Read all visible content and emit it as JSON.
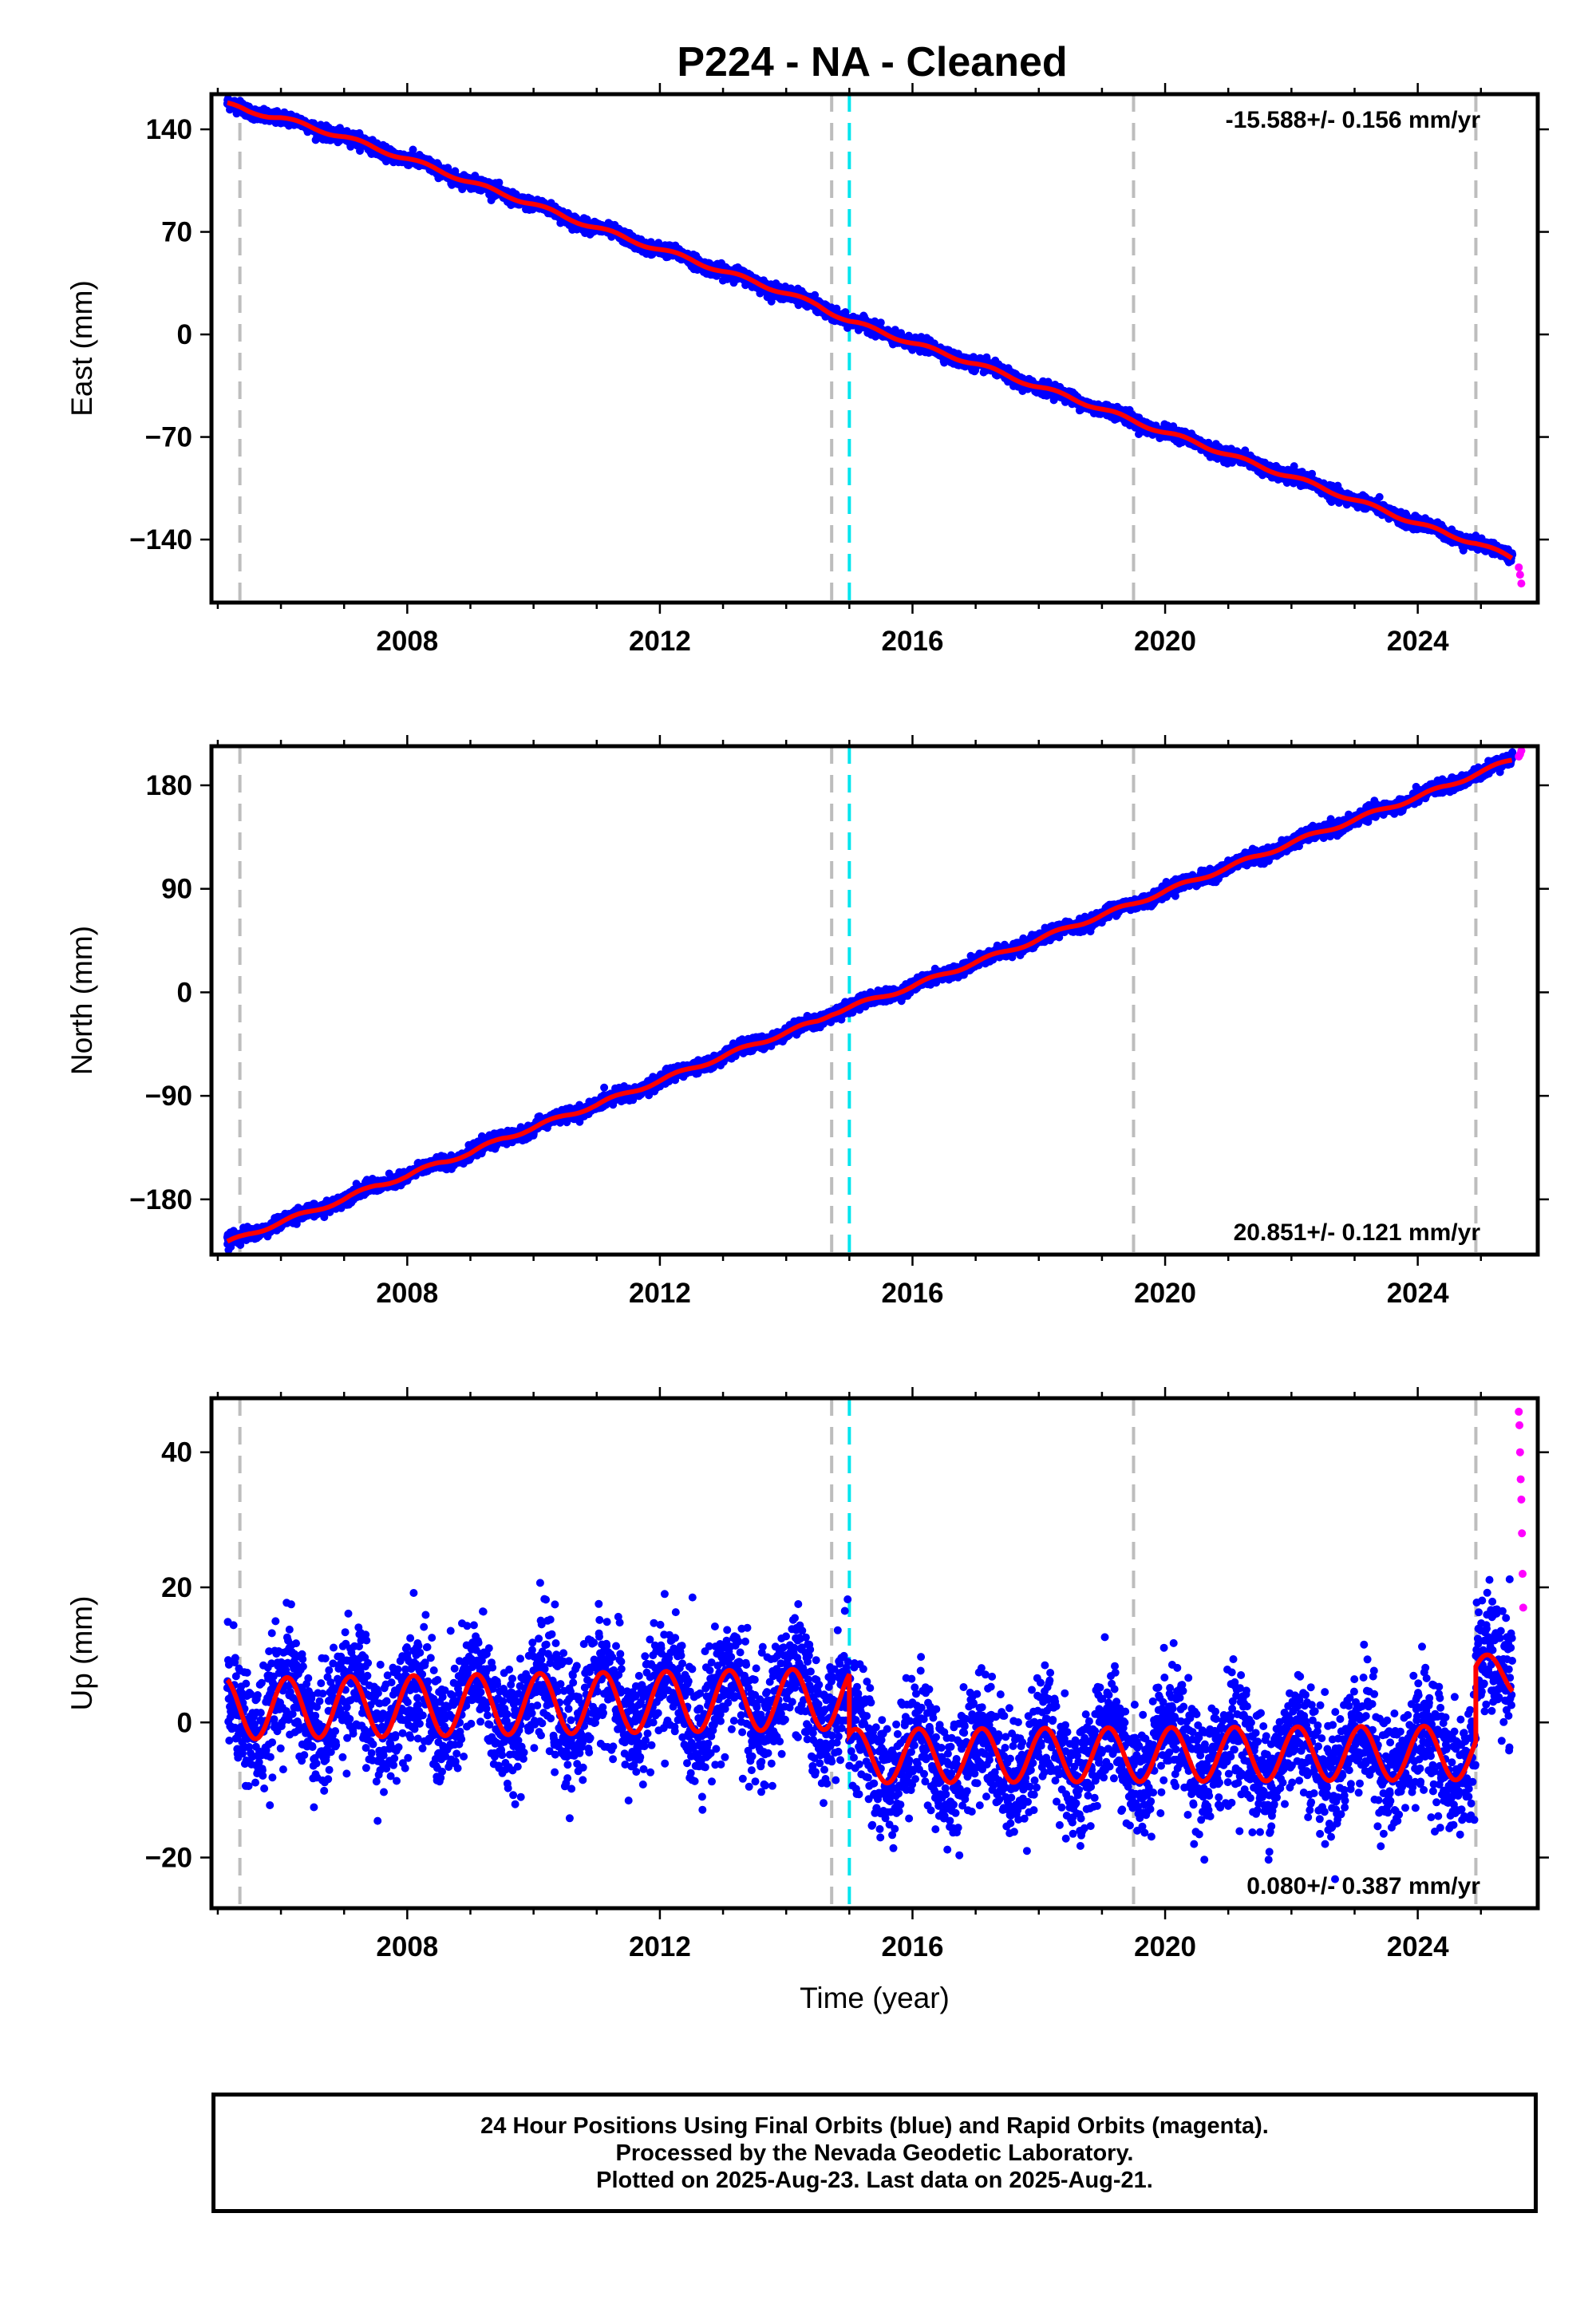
{
  "title": "P224  - NA - Cleaned",
  "colors": {
    "final_orbits": "#0000ff",
    "rapid_orbits": "#ff00ff",
    "model_fit": "#ff0000",
    "equipment_change_line": "#bdbdbd",
    "earthquake_line": "#00e5ee"
  },
  "chart_data": [
    {
      "type": "scatter",
      "panel": "east",
      "ylabel": "East (mm)",
      "xlabel": "",
      "xlim": [
        2004.9,
        2025.9
      ],
      "ylim": [
        -183,
        164
      ],
      "yticks": [
        140,
        70,
        0,
        -70,
        -140
      ],
      "xticks": [
        2008,
        2012,
        2016,
        2020,
        2024
      ],
      "rate_label": "-15.588+/- 0.156 mm/yr",
      "rate_position": "top-right",
      "grid": false,
      "vertical_lines": {
        "gray_dashed": [
          2005.35,
          2014.72,
          2019.5,
          2024.92
        ],
        "cyan_dashed": [
          2015.0
        ]
      },
      "series": [
        {
          "color": "blue",
          "x": [
            2005.15,
            2005.5,
            2006,
            2006.5,
            2007,
            2007.5,
            2008,
            2008.5,
            2009,
            2009.5,
            2010,
            2010.5,
            2011,
            2011.5,
            2012,
            2012.5,
            2013,
            2013.5,
            2014,
            2014.5,
            2014.72,
            2015,
            2015.5,
            2016,
            2016.5,
            2017,
            2017.5,
            2018,
            2018.5,
            2019,
            2019.5,
            2020,
            2020.5,
            2021,
            2021.5,
            2022,
            2022.5,
            2023,
            2023.5,
            2024,
            2024.5,
            2024.92,
            2025.5
          ],
          "y": [
            157,
            152,
            148,
            141,
            135,
            127,
            120,
            112,
            104,
            96,
            89,
            80,
            73,
            65,
            58,
            51,
            43,
            36,
            28,
            20,
            15,
            9,
            2,
            -6,
            -13,
            -20,
            -28,
            -36,
            -43,
            -51,
            -59,
            -67,
            -74,
            -82,
            -90,
            -97,
            -105,
            -113,
            -121,
            -129,
            -137,
            -142,
            -153
          ]
        },
        {
          "color": "magenta",
          "x": [
            2025.6,
            2025.62,
            2025.64
          ],
          "y": [
            -159,
            -164,
            -170
          ]
        }
      ]
    },
    {
      "type": "scatter",
      "panel": "north",
      "ylabel": "North (mm)",
      "xlabel": "",
      "xlim": [
        2004.9,
        2025.9
      ],
      "ylim": [
        -228,
        214
      ],
      "yticks": [
        180,
        90,
        0,
        -90,
        -180
      ],
      "xticks": [
        2008,
        2012,
        2016,
        2020,
        2024
      ],
      "rate_label": "20.851+/- 0.121 mm/yr",
      "rate_position": "bottom-right",
      "grid": false,
      "vertical_lines": {
        "gray_dashed": [
          2005.35,
          2014.72,
          2019.5,
          2024.92
        ],
        "cyan_dashed": [
          2015.0
        ]
      },
      "series": [
        {
          "color": "blue",
          "x": [
            2005.15,
            2005.5,
            2006,
            2006.5,
            2007,
            2007.5,
            2008,
            2008.5,
            2009,
            2009.5,
            2010,
            2010.5,
            2011,
            2011.5,
            2012,
            2012.5,
            2013,
            2013.5,
            2014,
            2014.5,
            2014.72,
            2015,
            2015.5,
            2016,
            2016.5,
            2017,
            2017.5,
            2018,
            2018.5,
            2019,
            2019.5,
            2020,
            2020.5,
            2021,
            2021.5,
            2022,
            2022.5,
            2023,
            2023.5,
            2024,
            2024.5,
            2024.92,
            2025.5
          ],
          "y": [
            -218,
            -210,
            -200,
            -190,
            -180,
            -168,
            -160,
            -148,
            -140,
            -127,
            -118,
            -107,
            -98,
            -87,
            -77,
            -66,
            -56,
            -45,
            -35,
            -25,
            -18,
            -13,
            -4,
            5,
            16,
            26,
            36,
            46,
            57,
            67,
            77,
            88,
            98,
            109,
            119,
            130,
            140,
            150,
            160,
            170,
            180,
            190,
            202
          ]
        },
        {
          "color": "magenta",
          "x": [
            2025.6,
            2025.62,
            2025.64
          ],
          "y": [
            205,
            207,
            210
          ]
        }
      ]
    },
    {
      "type": "scatter",
      "panel": "up",
      "ylabel": "Up (mm)",
      "xlabel": "Time (year)",
      "xlim": [
        2004.9,
        2025.9
      ],
      "ylim": [
        -27.5,
        48
      ],
      "yticks": [
        40,
        20,
        0,
        -20
      ],
      "xticks": [
        2008,
        2012,
        2016,
        2020,
        2024
      ],
      "rate_label": "0.080+/- 0.387 mm/yr",
      "rate_position": "bottom-right",
      "grid": false,
      "vertical_lines": {
        "gray_dashed": [
          2005.35,
          2014.72,
          2019.5,
          2024.92
        ],
        "cyan_dashed": [
          2015.0
        ]
      },
      "seasonal_fit": {
        "period_years": 1.0,
        "phase_peak_year_fraction": 0.1,
        "segments": [
          {
            "x_start": 2005.15,
            "x_end": 2015.0,
            "mean_start": 2.0,
            "mean_end": 3.5,
            "amplitude": 4.5
          },
          {
            "x_start": 2015.0,
            "x_end": 2024.92,
            "mean_start": -5.0,
            "mean_end": -4.5,
            "amplitude": 4.0
          },
          {
            "x_start": 2024.92,
            "x_end": 2025.5,
            "mean_start": 7.0,
            "mean_end": 7.0,
            "amplitude": 3.0
          }
        ],
        "scatter_spread": 4.5
      },
      "series": [
        {
          "color": "magenta",
          "x": [
            2025.6,
            2025.61,
            2025.62,
            2025.63,
            2025.64,
            2025.65,
            2025.66,
            2025.67
          ],
          "y": [
            46,
            44,
            40,
            36,
            33,
            28,
            22,
            17
          ]
        }
      ]
    }
  ],
  "footer": {
    "line1": "24 Hour Positions Using Final Orbits (blue) and Rapid Orbits (magenta).",
    "line2": "Processed by the Nevada Geodetic Laboratory.",
    "line3": "Plotted on 2025-Aug-23. Last data on 2025-Aug-21."
  }
}
